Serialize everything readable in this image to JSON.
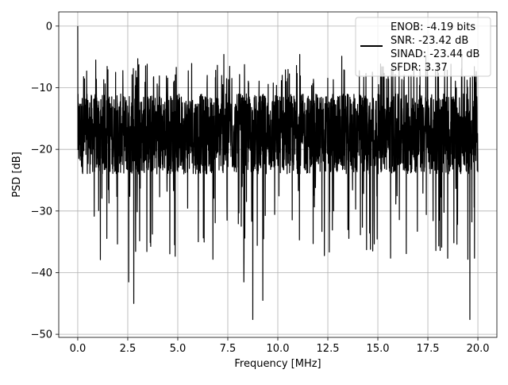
{
  "chart_data": {
    "type": "line",
    "title": "",
    "xlabel": "Frequency [MHz]",
    "ylabel": "PSD [dB]",
    "xlim": [
      -0.95,
      20.95
    ],
    "ylim": [
      -50.5,
      2.3
    ],
    "xticks": [
      0.0,
      2.5,
      5.0,
      7.5,
      10.0,
      12.5,
      15.0,
      17.5,
      20.0
    ],
    "xtick_labels": [
      "0.0",
      "2.5",
      "5.0",
      "7.5",
      "10.0",
      "12.5",
      "15.0",
      "17.5",
      "20.0"
    ],
    "yticks": [
      0,
      -10,
      -20,
      -30,
      -40,
      -50
    ],
    "ytick_labels": [
      "0",
      "−10",
      "−20",
      "−30",
      "−40",
      "−50"
    ],
    "grid": true,
    "legend_position": "top-right",
    "legend_entries": [
      "ENOB: -4.19 bits",
      "SNR: -23.42 dB",
      "SINAD: -23.44 dB",
      "SFDR: 3.37"
    ],
    "series": [
      {
        "color": "#000000",
        "x_range": [
          0.0,
          20.0
        ],
        "description_of_shape": "noise floor",
        "peaks": [
          {
            "x": 0.0,
            "y": 0.0
          },
          {
            "x": 0.9,
            "y": -5.5
          },
          {
            "x": 3.0,
            "y": -5.3
          },
          {
            "x": 7.3,
            "y": -4.6
          },
          {
            "x": 11.1,
            "y": -4.6
          },
          {
            "x": 13.2,
            "y": -4.9
          },
          {
            "x": 17.4,
            "y": -4.8
          },
          {
            "x": 19.2,
            "y": -4.9
          }
        ],
        "troughs": [
          {
            "x": 2.55,
            "y": -41.5
          },
          {
            "x": 2.8,
            "y": -45.0
          },
          {
            "x": 8.3,
            "y": -41.5
          },
          {
            "x": 8.75,
            "y": -47.6
          },
          {
            "x": 9.25,
            "y": -44.5
          },
          {
            "x": 19.6,
            "y": -47.6
          }
        ],
        "band_upper": -11,
        "band_lower": -24
      }
    ]
  }
}
